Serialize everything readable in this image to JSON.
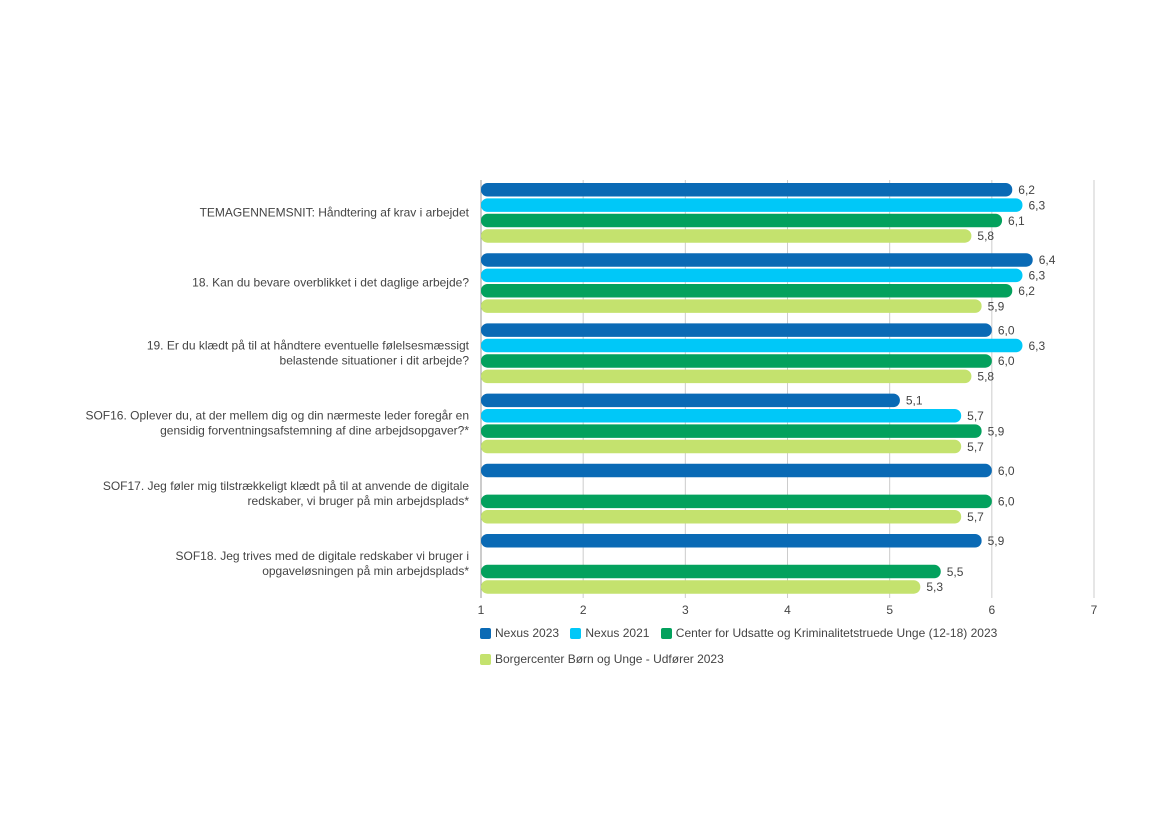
{
  "chart_data": {
    "type": "bar",
    "orientation": "horizontal",
    "categories": [
      "TEMAGENNEMSNIT: Håndtering af krav i arbejdet",
      "18. Kan du bevare overblikket i det daglige arbejde?",
      "19. Er du klædt på til at håndtere eventuelle følelsesmæssigt belastende situationer i dit arbejde?",
      "SOF16. Oplever du, at der mellem dig og din nærmeste leder foregår en gensidig forventningsafstemning af dine arbejdsopgaver?*",
      "SOF17. Jeg føler mig tilstrækkeligt klædt på til at anvende de digitale redskaber, vi bruger på min arbejdsplads*",
      "SOF18. Jeg trives med de digitale redskaber vi bruger i opgaveløsningen på min arbejdsplads*"
    ],
    "category_lines": [
      [
        "TEMAGENNEMSNIT: Håndtering af krav i arbejdet"
      ],
      [
        "18. Kan du bevare overblikket i det daglige arbejde?"
      ],
      [
        "19. Er du klædt på til at håndtere eventuelle følelsesmæssigt",
        "belastende situationer i dit arbejde?"
      ],
      [
        "SOF16. Oplever du, at der mellem dig og din nærmeste leder foregår en",
        "gensidig forventningsafstemning af dine arbejdsopgaver?*"
      ],
      [
        "SOF17. Jeg føler mig tilstrækkeligt klædt på til at anvende de digitale",
        "redskaber, vi bruger på min arbejdsplads*"
      ],
      [
        "SOF18. Jeg trives med de digitale redskaber vi bruger i",
        "opgaveløsningen på min arbejdsplads*"
      ]
    ],
    "series": [
      {
        "name": "Nexus 2023",
        "color": "#0a6ab5",
        "values": [
          6.2,
          6.4,
          6.0,
          5.1,
          6.0,
          5.9
        ],
        "labels": [
          "6,2",
          "6,4",
          "6,0",
          "5,1",
          "6,0",
          "5,9"
        ]
      },
      {
        "name": "Nexus 2021",
        "color": "#00c8f8",
        "values": [
          6.3,
          6.3,
          6.3,
          5.7,
          null,
          null
        ],
        "labels": [
          "6,3",
          "6,3",
          "6,3",
          "5,7",
          "",
          ""
        ]
      },
      {
        "name": "Center for Udsatte og Kriminalitetstruede Unge (12-18) 2023",
        "color": "#03a15d",
        "values": [
          6.1,
          6.2,
          6.0,
          5.9,
          6.0,
          5.5
        ],
        "labels": [
          "6,1",
          "6,2",
          "6,0",
          "5,9",
          "6,0",
          "5,5"
        ]
      },
      {
        "name": "Borgercenter Børn og Unge - Udfører 2023",
        "color": "#c4e26e",
        "values": [
          5.8,
          5.9,
          5.8,
          5.7,
          5.7,
          5.3
        ],
        "labels": [
          "5,8",
          "5,9",
          "5,8",
          "5,7",
          "5,7",
          "5,3"
        ]
      }
    ],
    "xlim": [
      1,
      7
    ],
    "xticks": [
      "1",
      "2",
      "3",
      "4",
      "5",
      "6",
      "7"
    ],
    "grid": true,
    "legend_position": "bottom"
  }
}
